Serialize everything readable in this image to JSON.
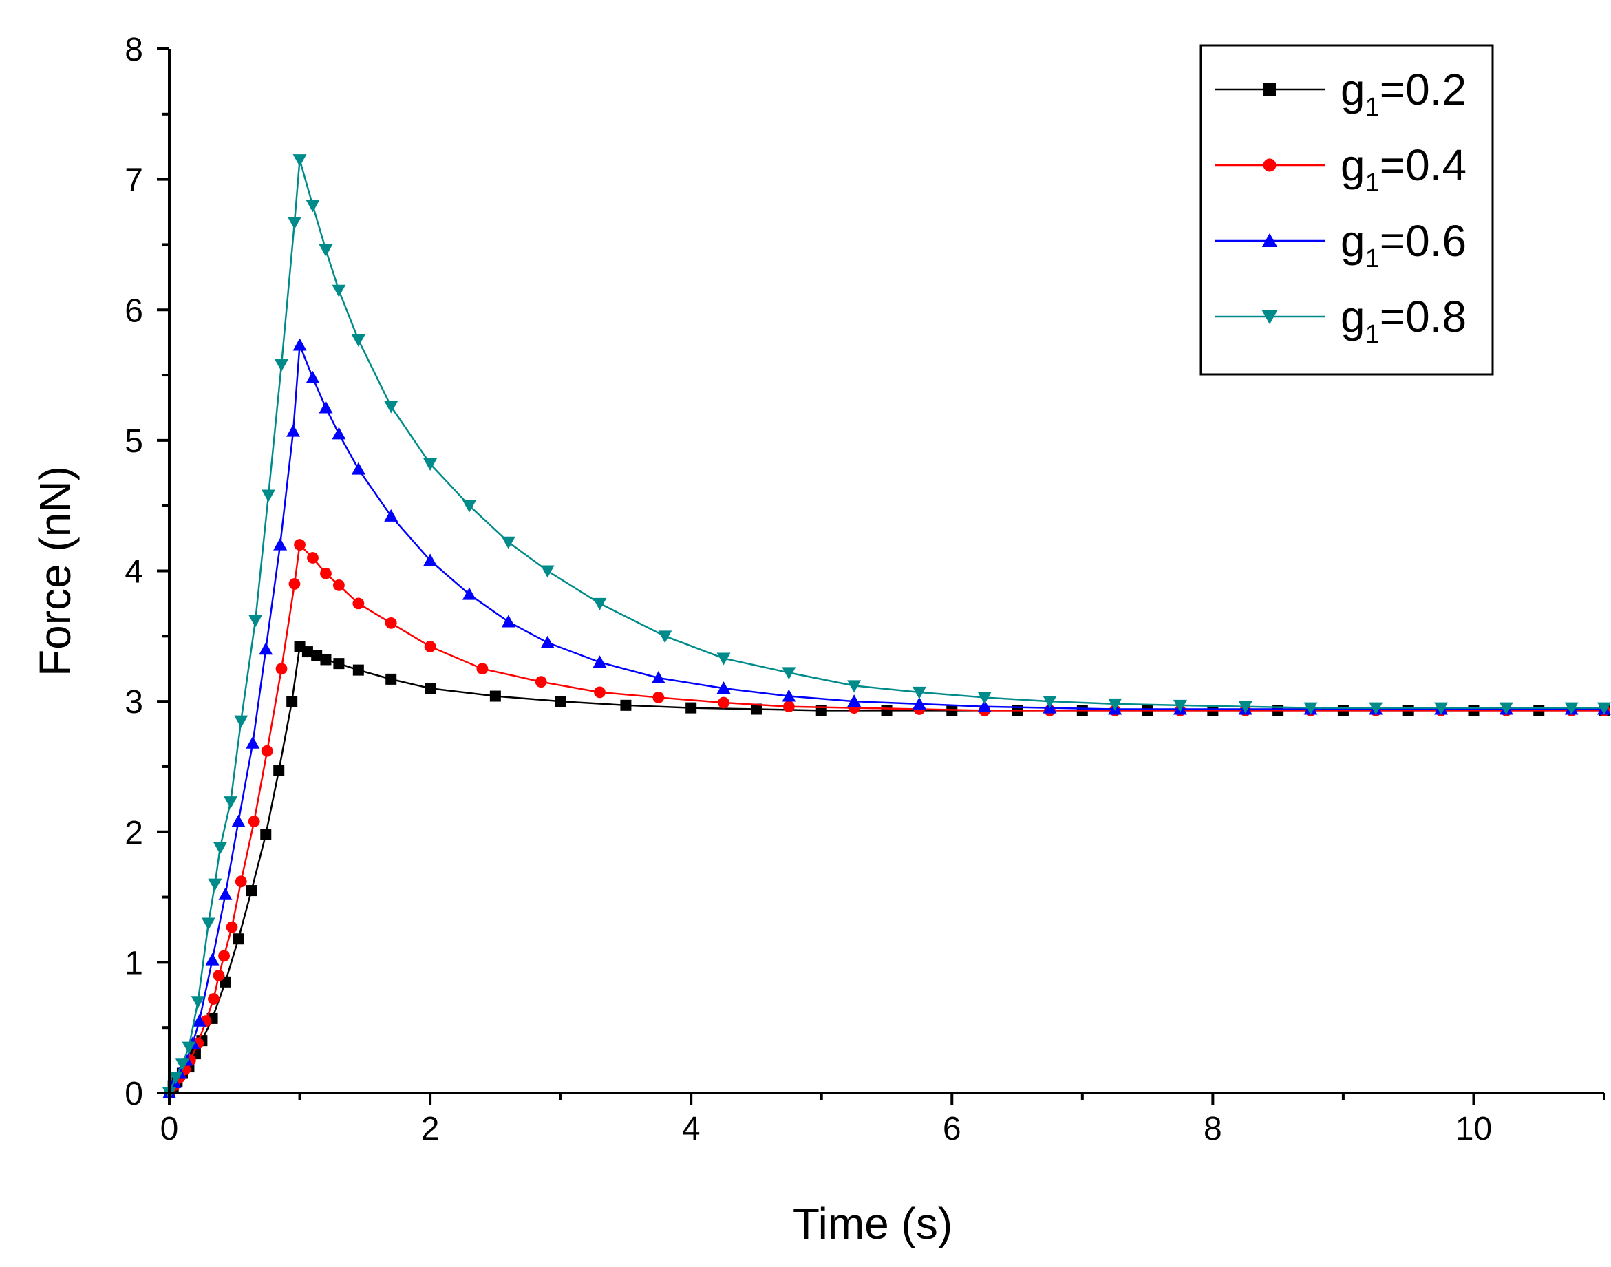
{
  "chart_data": {
    "type": "line",
    "title": "",
    "xlabel": "Time (s)",
    "ylabel": "Force (nN)",
    "xlim": [
      0,
      11
    ],
    "ylim": [
      0,
      8
    ],
    "xticks": [
      "0",
      "2",
      "4",
      "6",
      "8",
      "10"
    ],
    "yticks": [
      "0",
      "1",
      "2",
      "3",
      "4",
      "5",
      "6",
      "7",
      "8"
    ],
    "legend_position": "top-right",
    "series": [
      {
        "name": "g1=0.2",
        "name_base": "g",
        "name_sub": "1",
        "name_suffix": "=0.2",
        "color": "#000000",
        "marker": "square",
        "x": [
          0,
          0.03,
          0.06,
          0.1,
          0.15,
          0.2,
          0.25,
          0.33,
          0.43,
          0.53,
          0.63,
          0.74,
          0.84,
          0.94,
          1.0,
          1.06,
          1.13,
          1.2,
          1.3,
          1.45,
          1.7,
          2.0,
          2.5,
          3.0,
          3.5,
          4.0,
          4.5,
          5.0,
          5.5,
          6.0,
          6.5,
          7.0,
          7.5,
          8.0,
          8.5,
          9.0,
          9.5,
          10.0,
          10.5,
          11.0
        ],
        "y": [
          0,
          0.05,
          0.09,
          0.15,
          0.2,
          0.3,
          0.4,
          0.57,
          0.85,
          1.18,
          1.55,
          1.98,
          2.47,
          3.0,
          3.42,
          3.38,
          3.35,
          3.32,
          3.29,
          3.24,
          3.17,
          3.1,
          3.04,
          3.0,
          2.97,
          2.95,
          2.94,
          2.93,
          2.93,
          2.93,
          2.93,
          2.93,
          2.93,
          2.93,
          2.93,
          2.93,
          2.93,
          2.93,
          2.93,
          2.93
        ]
      },
      {
        "name": "g1=0.4",
        "name_base": "g",
        "name_sub": "1",
        "name_suffix": "=0.4",
        "color": "#ff0000",
        "marker": "circle",
        "x": [
          0,
          0.04,
          0.08,
          0.12,
          0.16,
          0.22,
          0.28,
          0.34,
          0.38,
          0.42,
          0.48,
          0.55,
          0.65,
          0.75,
          0.86,
          0.96,
          1.0,
          1.1,
          1.2,
          1.3,
          1.45,
          1.7,
          2.0,
          2.4,
          2.85,
          3.3,
          3.75,
          4.25,
          4.75,
          5.25,
          5.75,
          6.25,
          6.75,
          7.25,
          7.75,
          8.25,
          8.75,
          9.25,
          9.75,
          10.25,
          10.75,
          11.0
        ],
        "y": [
          0,
          0.06,
          0.12,
          0.18,
          0.25,
          0.38,
          0.55,
          0.72,
          0.9,
          1.05,
          1.27,
          1.62,
          2.08,
          2.62,
          3.25,
          3.9,
          4.2,
          4.1,
          3.98,
          3.89,
          3.75,
          3.6,
          3.42,
          3.25,
          3.15,
          3.07,
          3.03,
          2.99,
          2.96,
          2.95,
          2.94,
          2.93,
          2.93,
          2.93,
          2.93,
          2.93,
          2.93,
          2.93,
          2.93,
          2.93,
          2.93,
          2.93
        ]
      },
      {
        "name": "g1=0.6",
        "name_base": "g",
        "name_sub": "1",
        "name_suffix": "=0.6",
        "color": "#0000ff",
        "marker": "triangle-up",
        "x": [
          0,
          0.04,
          0.08,
          0.13,
          0.18,
          0.23,
          0.33,
          0.43,
          0.53,
          0.64,
          0.74,
          0.85,
          0.95,
          1.0,
          1.1,
          1.2,
          1.3,
          1.45,
          1.7,
          2.0,
          2.3,
          2.6,
          2.9,
          3.3,
          3.75,
          4.25,
          4.75,
          5.25,
          5.75,
          6.25,
          6.75,
          7.25,
          7.75,
          8.25,
          8.75,
          9.25,
          9.75,
          10.25,
          10.75,
          11.0
        ],
        "y": [
          0,
          0.08,
          0.15,
          0.25,
          0.38,
          0.55,
          1.02,
          1.52,
          2.08,
          2.68,
          3.4,
          4.2,
          5.07,
          5.73,
          5.48,
          5.25,
          5.05,
          4.78,
          4.42,
          4.08,
          3.82,
          3.61,
          3.45,
          3.3,
          3.18,
          3.1,
          3.04,
          3.0,
          2.98,
          2.96,
          2.95,
          2.94,
          2.94,
          2.94,
          2.94,
          2.94,
          2.94,
          2.94,
          2.94,
          2.94
        ]
      },
      {
        "name": "g1=0.8",
        "name_base": "g",
        "name_sub": "1",
        "name_suffix": "=0.8",
        "color": "#008b8b",
        "marker": "triangle-down",
        "x": [
          0,
          0.05,
          0.1,
          0.15,
          0.22,
          0.3,
          0.35,
          0.39,
          0.47,
          0.55,
          0.66,
          0.76,
          0.86,
          0.96,
          1.0,
          1.1,
          1.2,
          1.3,
          1.45,
          1.7,
          2.0,
          2.3,
          2.6,
          2.9,
          3.3,
          3.8,
          4.25,
          4.75,
          5.25,
          5.75,
          6.25,
          6.75,
          7.25,
          7.75,
          8.25,
          8.75,
          9.25,
          9.75,
          10.25,
          10.75,
          11.0
        ],
        "y": [
          0,
          0.12,
          0.22,
          0.35,
          0.7,
          1.3,
          1.6,
          1.88,
          2.23,
          2.85,
          3.62,
          4.58,
          5.58,
          6.67,
          7.15,
          6.8,
          6.46,
          6.15,
          5.77,
          5.26,
          4.82,
          4.5,
          4.22,
          4.0,
          3.75,
          3.5,
          3.33,
          3.22,
          3.12,
          3.07,
          3.03,
          3.0,
          2.98,
          2.97,
          2.96,
          2.95,
          2.95,
          2.95,
          2.95,
          2.95,
          2.95
        ]
      }
    ]
  }
}
